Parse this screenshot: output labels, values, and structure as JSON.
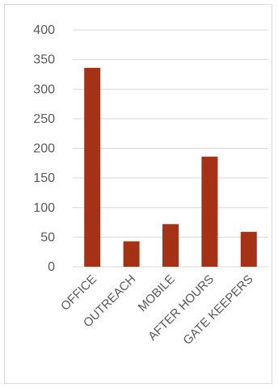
{
  "chart_data": {
    "type": "bar",
    "categories": [
      "OFFICE",
      "OUTREACH",
      "MOBILE",
      "AFTER HOURS",
      "GATE KEEPERS"
    ],
    "values": [
      336,
      43,
      72,
      186,
      59
    ],
    "ylim": [
      0,
      400
    ],
    "yticks": [
      "0",
      "50",
      "100",
      "150",
      "200",
      "250",
      "300",
      "350",
      "400"
    ],
    "grid": true,
    "legend": "none",
    "colors": {
      "bar": "#a63216",
      "grid": "#d9d9d9",
      "text": "#595959"
    }
  }
}
